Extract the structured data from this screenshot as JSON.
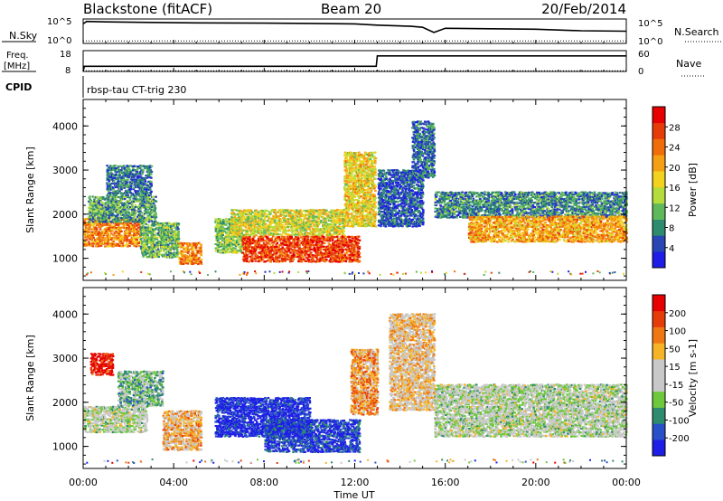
{
  "header": {
    "station": "Blackstone (fitACF)",
    "beam": "Beam 20",
    "date": "20/Feb/2014"
  },
  "noise_panel": {
    "left_label": "N.Sky",
    "right_label": "N.Search",
    "left_ticks": [
      "10^5",
      "10^0"
    ],
    "right_ticks": [
      "10^5",
      "10^0"
    ]
  },
  "freq_panel": {
    "left_label_top": "Freq.",
    "left_label_unit": "[MHz]",
    "right_label": "Nave",
    "left_ticks": [
      "18",
      "8"
    ],
    "right_ticks": [
      "60",
      "0"
    ]
  },
  "cpid": {
    "label": "CPID",
    "program": "rbsp-tau CT-trig 230"
  },
  "time_axis": {
    "label": "Time UT",
    "ticks": [
      "00:00",
      "04:00",
      "08:00",
      "12:00",
      "16:00",
      "20:00",
      "00:00"
    ],
    "hours": [
      0,
      4,
      8,
      12,
      16,
      20,
      24
    ]
  },
  "power_panel": {
    "ylabel": "Slant Range [km]",
    "yticks": [
      1000,
      2000,
      3000,
      4000
    ],
    "ylim": [
      500,
      4600
    ],
    "colorbar_label": "Power [dB]",
    "colorbar_ticks": [
      4,
      8,
      12,
      16,
      20,
      24,
      28
    ],
    "colors": [
      "#1e1ee6",
      "#2846b4",
      "#2e8b6e",
      "#5fb85a",
      "#b4dc3c",
      "#f2d21e",
      "#f5a014",
      "#f06e0a",
      "#e63c0a",
      "#e60000"
    ]
  },
  "velocity_panel": {
    "ylabel": "Slant Range [km]",
    "yticks": [
      1000,
      2000,
      3000,
      4000
    ],
    "ylim": [
      500,
      4600
    ],
    "colorbar_label": "Velocity [m s-1]",
    "colorbar_ticks": [
      200,
      100,
      50,
      15,
      -15,
      -50,
      -100,
      -200
    ],
    "colors": [
      "#1e1ee6",
      "#2850c8",
      "#2e8b6e",
      "#6ec83c",
      "#c8c8c8",
      "#c8c8c8",
      "#f5b428",
      "#f07814",
      "#e63c0a",
      "#e60000"
    ]
  },
  "chart_data": [
    {
      "type": "line",
      "name": "noise",
      "series": [
        {
          "name": "N.Sky",
          "x": [
            0.0,
            0.15,
            1,
            3,
            5,
            8,
            10,
            12,
            13,
            14.5,
            15.0,
            15.5,
            16,
            18,
            20,
            22,
            24
          ],
          "y": [
            0.8,
            0.9,
            0.88,
            0.86,
            0.84,
            0.83,
            0.82,
            0.8,
            0.75,
            0.7,
            0.66,
            0.45,
            0.62,
            0.6,
            0.58,
            0.52,
            0.5
          ]
        },
        {
          "name": "N.Search",
          "x": [
            0,
            4,
            8,
            12,
            16,
            20,
            24
          ],
          "y": [
            0.1,
            0.1,
            0.1,
            0.1,
            0.1,
            0.1,
            0.1
          ]
        }
      ]
    },
    {
      "type": "line",
      "name": "frequency-nave",
      "series": [
        {
          "name": "Freq",
          "x": [
            0.0,
            0.05,
            12.95,
            13.0,
            24
          ],
          "y": [
            8,
            10.5,
            10.5,
            15.5,
            15.5
          ]
        },
        {
          "name": "Nave",
          "x": [
            0,
            24
          ],
          "y": [
            2,
            2
          ]
        }
      ]
    },
    {
      "type": "heatmap",
      "name": "power",
      "xlabel": "Time UT",
      "ylabel": "Slant Range [km]",
      "xlim": [
        0,
        24
      ],
      "ylim": [
        500,
        4600
      ],
      "zlabel": "Power [dB]",
      "blobs": [
        {
          "t0": 0.0,
          "t1": 2.5,
          "r0": 1250,
          "r1": 1900,
          "v": 0.72
        },
        {
          "t0": 0.2,
          "t1": 3.2,
          "r0": 1800,
          "r1": 2400,
          "v": 0.3
        },
        {
          "t0": 1.0,
          "t1": 3.0,
          "r0": 2400,
          "r1": 3100,
          "v": 0.22
        },
        {
          "t0": 2.5,
          "t1": 4.2,
          "r0": 1000,
          "r1": 1800,
          "v": 0.35
        },
        {
          "t0": 4.2,
          "t1": 5.2,
          "r0": 850,
          "r1": 1350,
          "v": 0.7
        },
        {
          "t0": 5.8,
          "t1": 7.0,
          "r0": 1100,
          "r1": 1900,
          "v": 0.4
        },
        {
          "t0": 6.5,
          "t1": 11.5,
          "r0": 1500,
          "r1": 2100,
          "v": 0.5
        },
        {
          "t0": 7.0,
          "t1": 12.2,
          "r0": 900,
          "r1": 1500,
          "v": 0.85
        },
        {
          "t0": 11.5,
          "t1": 12.9,
          "r0": 1700,
          "r1": 3400,
          "v": 0.55
        },
        {
          "t0": 13.0,
          "t1": 15.0,
          "r0": 1700,
          "r1": 3000,
          "v": 0.15
        },
        {
          "t0": 14.5,
          "t1": 15.5,
          "r0": 2800,
          "r1": 4100,
          "v": 0.2
        },
        {
          "t0": 15.5,
          "t1": 24.0,
          "r0": 1900,
          "r1": 2500,
          "v": 0.25
        },
        {
          "t0": 17.0,
          "t1": 24.0,
          "r0": 1350,
          "r1": 1950,
          "v": 0.65
        }
      ]
    },
    {
      "type": "heatmap",
      "name": "velocity",
      "xlabel": "Time UT",
      "ylabel": "Slant Range [km]",
      "xlim": [
        0,
        24
      ],
      "ylim": [
        500,
        4600
      ],
      "zlabel": "Velocity [m s-1]",
      "blobs": [
        {
          "t0": 0.0,
          "t1": 2.8,
          "r0": 1300,
          "r1": 1900,
          "v": 0.45
        },
        {
          "t0": 0.3,
          "t1": 1.3,
          "r0": 2600,
          "r1": 3100,
          "v": 0.95
        },
        {
          "t0": 1.5,
          "t1": 3.5,
          "r0": 1900,
          "r1": 2700,
          "v": 0.35
        },
        {
          "t0": 3.5,
          "t1": 5.2,
          "r0": 900,
          "r1": 1800,
          "v": 0.65
        },
        {
          "t0": 5.8,
          "t1": 10.0,
          "r0": 1200,
          "r1": 2100,
          "v": 0.05
        },
        {
          "t0": 8.0,
          "t1": 12.2,
          "r0": 850,
          "r1": 1600,
          "v": 0.1
        },
        {
          "t0": 11.8,
          "t1": 13.0,
          "r0": 1700,
          "r1": 3200,
          "v": 0.7
        },
        {
          "t0": 13.5,
          "t1": 15.5,
          "r0": 1800,
          "r1": 4000,
          "v": 0.6
        },
        {
          "t0": 15.5,
          "t1": 24.0,
          "r0": 1200,
          "r1": 2400,
          "v": 0.45
        }
      ]
    }
  ]
}
